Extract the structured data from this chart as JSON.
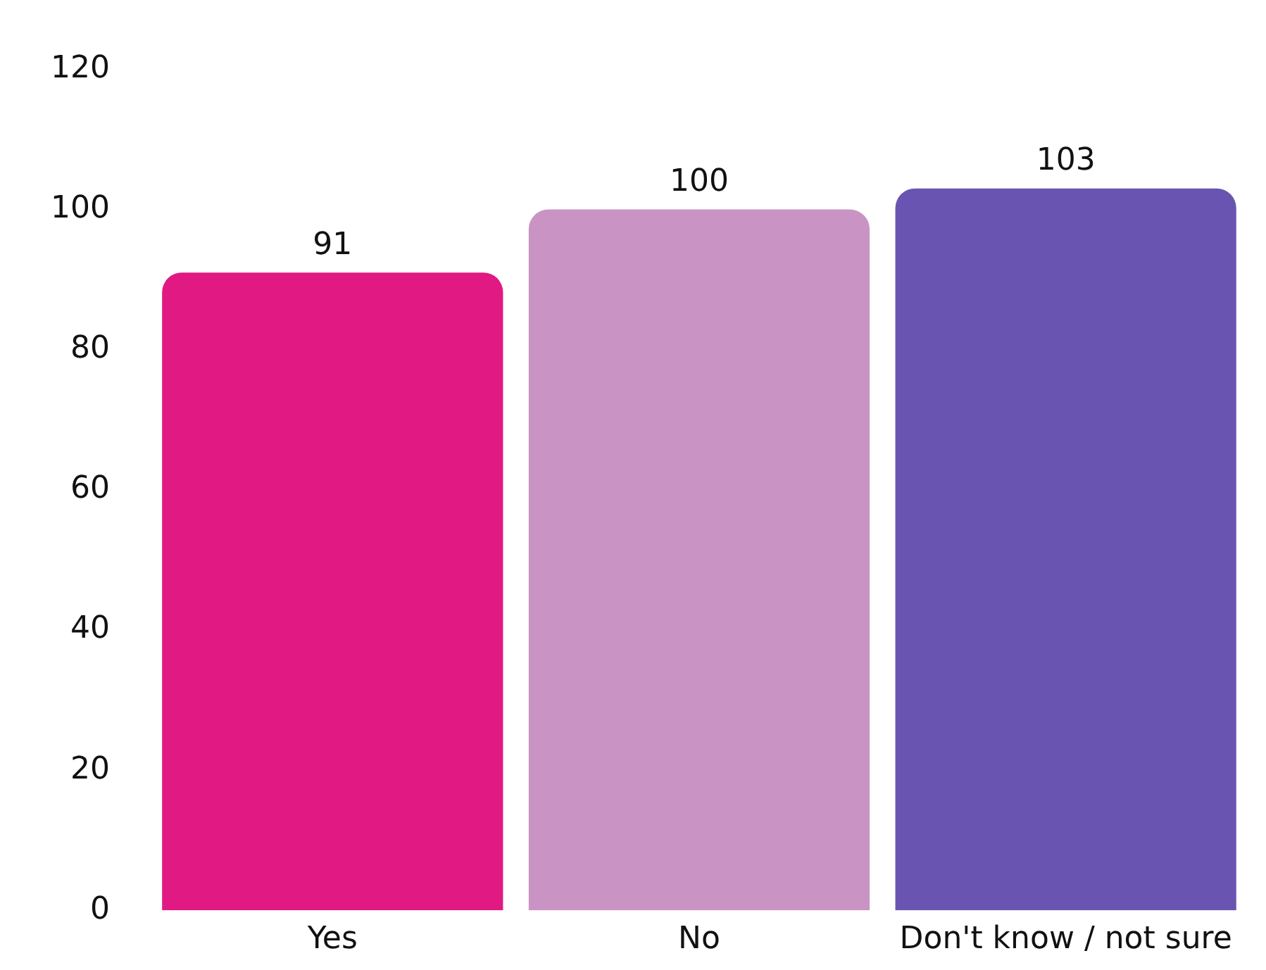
{
  "chart_data": {
    "type": "bar",
    "categories": [
      "Yes",
      "No",
      "Don't know / not sure"
    ],
    "values": [
      91,
      100,
      103
    ],
    "colors": [
      "#e01a82",
      "#c994c3",
      "#6955b1"
    ],
    "ylim": [
      0,
      120
    ],
    "yticks": [
      0,
      20,
      40,
      60,
      80,
      100,
      120
    ],
    "grid": false,
    "legend": false,
    "data_labels": true
  }
}
